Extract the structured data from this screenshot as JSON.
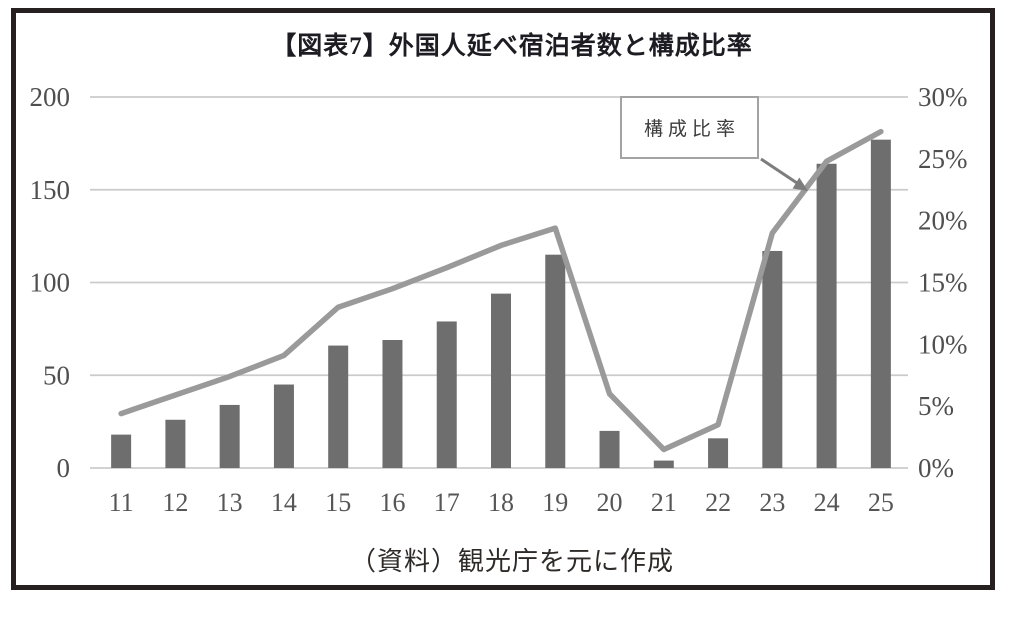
{
  "chart_data": {
    "type": "bar",
    "combo": true,
    "title": "【図表7】外国人延べ宿泊者数と構成比率",
    "categories": [
      "11",
      "12",
      "13",
      "14",
      "15",
      "16",
      "17",
      "18",
      "19",
      "20",
      "21",
      "22",
      "23",
      "24",
      "25"
    ],
    "series": [
      {
        "name": "外国人延べ宿泊者数",
        "type": "bar",
        "axis": "left",
        "values": [
          18,
          26,
          34,
          45,
          66,
          69,
          79,
          94,
          115,
          20,
          4,
          16,
          117,
          164,
          177
        ]
      },
      {
        "name": "構成比率",
        "type": "line",
        "axis": "right",
        "values": [
          4.4,
          5.9,
          7.4,
          9.1,
          13.0,
          14.5,
          16.2,
          18.0,
          19.4,
          6.0,
          1.5,
          3.5,
          19.0,
          24.8,
          27.2
        ]
      }
    ],
    "left_axis": {
      "ticks": [
        "200",
        "150",
        "100",
        "50",
        "0"
      ],
      "min": 0,
      "max": 200
    },
    "right_axis": {
      "ticks": [
        "30%",
        "25%",
        "20%",
        "15%",
        "10%",
        "5%",
        "0%"
      ],
      "min": 0,
      "max": 30
    },
    "grid": "horizontal",
    "legend_position": "annotation-callout",
    "annotation": {
      "label": "構成比率"
    },
    "source_note": "（資料）観光庁を元に作成",
    "colors": {
      "bar": "#6e6e6e",
      "line": "#9a9a9a",
      "grid": "#cbcbcb",
      "axis_text": "#4f4f4f",
      "frame": "#272020",
      "arrow": "#7d7d7d"
    }
  }
}
